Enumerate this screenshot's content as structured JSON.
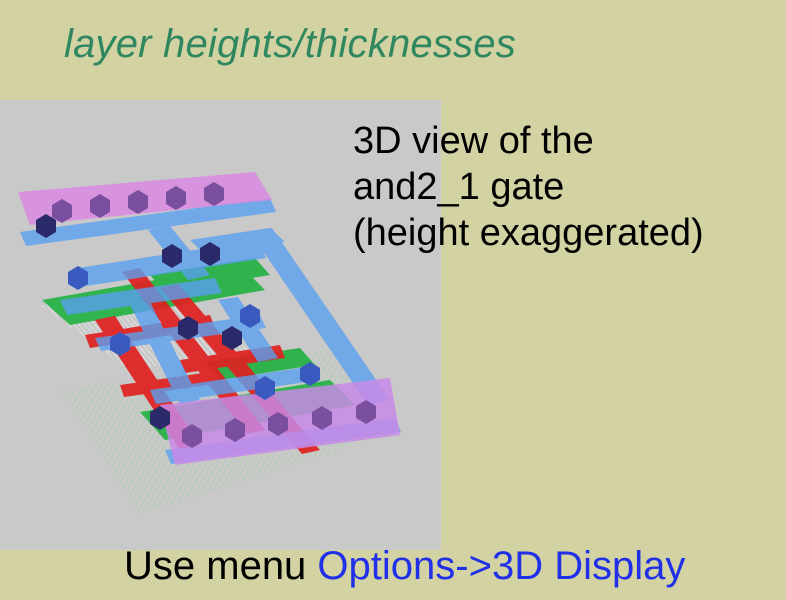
{
  "slide": {
    "title": "layer heights/thicknesses",
    "caption": {
      "line1": "3D view of the",
      "line2": "and2_1 gate",
      "line3": "(height exaggerated)"
    },
    "footer": {
      "prefix": "Use menu ",
      "menu_path": "Options->3D Display"
    }
  },
  "colors": {
    "background": "#d3d2a3",
    "title": "#2f8760",
    "viewer_background": "#c9c9c9",
    "metal1": "#5aa0f0",
    "metal2": "#d98ae0",
    "poly": "#e02020",
    "diffusion": "#20b040",
    "contact": "#2a2a6a",
    "link": "#2030e8"
  }
}
